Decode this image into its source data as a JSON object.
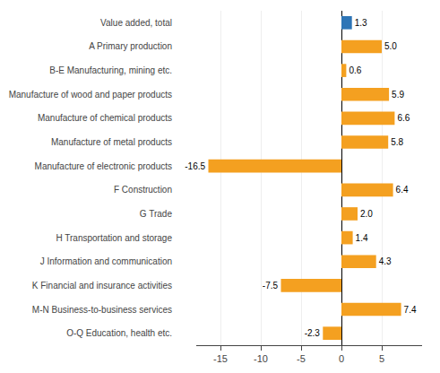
{
  "chart_data": {
    "type": "bar",
    "orientation": "horizontal",
    "categories": [
      "Value added, total",
      "A Primary production",
      "B-E Manufacturing, mining etc.",
      "Manufacture of wood and paper products",
      "Manufacture of chemical products",
      "Manufacture of metal products",
      "Manufacture of electronic products",
      "F Construction",
      "G Trade",
      "H Transportation and storage",
      "J Information and communication",
      "K Financial and insurance activities",
      "M-N Business-to-business services",
      "O-Q Education, health etc."
    ],
    "values": [
      1.3,
      5.0,
      0.6,
      5.9,
      6.6,
      5.8,
      -16.5,
      6.4,
      2.0,
      1.4,
      4.3,
      -7.5,
      7.4,
      -2.3
    ],
    "value_labels": [
      "1.3",
      "5.0",
      "0.6",
      "5.9",
      "6.6",
      "5.8",
      "-16.5",
      "6.4",
      "2.0",
      "1.4",
      "4.3",
      "-7.5",
      "7.4",
      "-2.3"
    ],
    "colors": [
      "#2e75b6",
      "#f4a020",
      "#f4a020",
      "#f4a020",
      "#f4a020",
      "#f4a020",
      "#f4a020",
      "#f4a020",
      "#f4a020",
      "#f4a020",
      "#f4a020",
      "#f4a020",
      "#f4a020",
      "#f4a020"
    ],
    "xlim": [
      -18,
      10
    ],
    "xticks": [
      -15,
      -10,
      -5,
      0,
      5
    ],
    "grid": true,
    "data_labels": true
  }
}
